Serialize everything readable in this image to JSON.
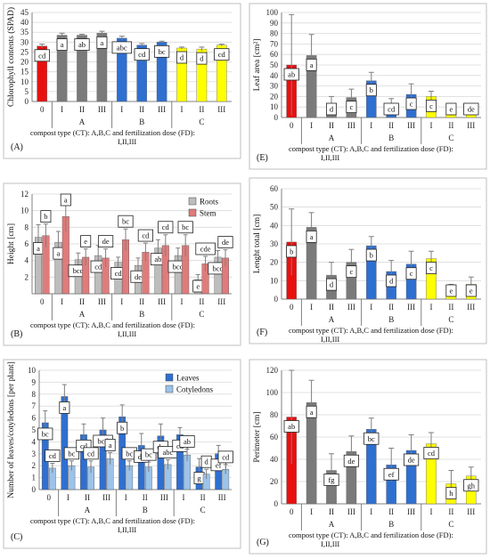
{
  "colors": {
    "red": "#e8100f",
    "grey": "#7a7a7a",
    "blue": "#2f6fd0",
    "yellow": "#ffff00",
    "grey_light": "#bdbdbd",
    "salmon": "#e07b7b",
    "blue_light": "#9cc3ea"
  },
  "x_groups": [
    {
      "code": "0",
      "group": ""
    },
    {
      "code": "I",
      "group": "A"
    },
    {
      "code": "II",
      "group": "A"
    },
    {
      "code": "III",
      "group": "A"
    },
    {
      "code": "I",
      "group": "B"
    },
    {
      "code": "II",
      "group": "B"
    },
    {
      "code": "III",
      "group": "B"
    },
    {
      "code": "I",
      "group": "C"
    },
    {
      "code": "II",
      "group": "C"
    },
    {
      "code": "III",
      "group": "C"
    }
  ],
  "group_letters": [
    "A",
    "B",
    "C"
  ],
  "caption_line1": "compost type (CT): A,B,C  and fertilization dose (FD):",
  "caption_line2": "I,II,III",
  "chart_data": [
    {
      "panel": "(A)",
      "type": "bar",
      "ylabel": "Chlorophyll contents (SPAD)",
      "ylim": [
        0,
        45
      ],
      "yticks": [
        0,
        5,
        10,
        15,
        20,
        25,
        30,
        35,
        40,
        45
      ],
      "categories": [
        "0",
        "I",
        "II",
        "III",
        "I",
        "II",
        "III",
        "I",
        "II",
        "III"
      ],
      "values": [
        28,
        33.5,
        33.5,
        34.5,
        32,
        28.5,
        30,
        27,
        26.5,
        28.5
      ],
      "errors": [
        1,
        1,
        0.5,
        1,
        1,
        0.8,
        0.5,
        0.5,
        1,
        0.5
      ],
      "letters": [
        "cd",
        "a",
        "ab",
        "a",
        "abc",
        "cd",
        "bc",
        "d",
        "d",
        "cd"
      ],
      "colors": [
        "red",
        "grey",
        "grey",
        "grey",
        "blue",
        "blue",
        "blue",
        "yellow",
        "yellow",
        "yellow"
      ]
    },
    {
      "panel": "(E)",
      "type": "bar",
      "ylabel": "Leaf area [cm²]",
      "ylim": [
        0,
        100
      ],
      "yticks": [
        0,
        10,
        20,
        30,
        40,
        50,
        60,
        70,
        80,
        90,
        100
      ],
      "categories": [
        "0",
        "I",
        "II",
        "III",
        "I",
        "II",
        "III",
        "I",
        "II",
        "III"
      ],
      "values": [
        50,
        59,
        12,
        19,
        35,
        13,
        22,
        20,
        6,
        8
      ],
      "errors": [
        48,
        20,
        8,
        8,
        8,
        5,
        10,
        5,
        4,
        4
      ],
      "letters": [
        "ab",
        "a",
        "d",
        "c",
        "b",
        "cd",
        "c",
        "c",
        "e",
        "de"
      ],
      "colors": [
        "red",
        "grey",
        "grey",
        "grey",
        "blue",
        "blue",
        "blue",
        "yellow",
        "yellow",
        "yellow"
      ]
    },
    {
      "panel": "(B)",
      "type": "bar",
      "ylabel": "Height [cm]",
      "ylim": [
        0,
        12
      ],
      "yticks": [
        2,
        4,
        6,
        8,
        10,
        12
      ],
      "categories": [
        "0",
        "I",
        "II",
        "III",
        "I",
        "II",
        "III",
        "I",
        "II",
        "III"
      ],
      "series": [
        {
          "name": "Roots",
          "values": [
            6.8,
            6.2,
            4.1,
            4.6,
            3.8,
            3.4,
            5.5,
            4.6,
            1.7,
            4.4
          ],
          "errors": [
            1.5,
            1.3,
            0.8,
            1.2,
            0.6,
            0.9,
            1.0,
            0.9,
            0.6,
            0.8
          ]
        },
        {
          "name": "Stem",
          "values": [
            7,
            9.3,
            4.4,
            4.3,
            6.5,
            5,
            5.8,
            5.8,
            3.6,
            4.3
          ],
          "errors": [
            1.4,
            1.8,
            1.0,
            1.1,
            1.3,
            1.1,
            1.3,
            1.3,
            0.9,
            1.0
          ]
        }
      ],
      "letters_roots": [
        "a",
        "a",
        "bcd",
        "cd",
        "cd",
        "de",
        "ab",
        "bcd",
        "e",
        "bcd"
      ],
      "letters_stem": [
        "b",
        "a",
        "e",
        "de",
        "bc",
        "cd",
        "cd",
        "bc",
        "cde",
        "de"
      ],
      "legend": [
        "Roots",
        "Stem"
      ]
    },
    {
      "panel": "(F)",
      "type": "bar",
      "ylabel": "Lenght total [cm]",
      "ylim": [
        0,
        60
      ],
      "yticks": [
        0,
        10,
        20,
        30,
        40,
        50,
        60
      ],
      "categories": [
        "0",
        "I",
        "II",
        "III",
        "I",
        "II",
        "III",
        "I",
        "II",
        "III"
      ],
      "values": [
        31,
        39,
        13,
        20,
        29,
        15,
        19,
        22,
        5,
        8
      ],
      "errors": [
        18,
        8,
        7,
        7,
        5,
        6,
        7,
        4,
        3,
        4
      ],
      "letters": [
        "b",
        "a",
        "d",
        "c",
        "b",
        "d",
        "c",
        "c",
        "e",
        "e"
      ],
      "colors": [
        "red",
        "grey",
        "grey",
        "grey",
        "blue",
        "blue",
        "blue",
        "yellow",
        "yellow",
        "yellow"
      ]
    },
    {
      "panel": "(C)",
      "type": "bar",
      "ylabel": "Number of leaves/cotyledons [per plant]",
      "ylim": [
        0,
        10
      ],
      "yticks": [
        0,
        1,
        2,
        3,
        4,
        5,
        6,
        7,
        8,
        9,
        10
      ],
      "categories": [
        "0",
        "I",
        "II",
        "III",
        "I",
        "II",
        "III",
        "I",
        "II",
        "III"
      ],
      "series": [
        {
          "name": "Leaves",
          "values": [
            5.6,
            7.8,
            4.6,
            5,
            6.1,
            3.7,
            4.5,
            4.6,
            1.9,
            3
          ],
          "errors": [
            1,
            1,
            0.9,
            1,
            1.0,
            1,
            1.0,
            0.6,
            0.7,
            0.7
          ]
        },
        {
          "name": "Cotyledons",
          "values": [
            1.8,
            2,
            1.9,
            2.6,
            2,
            1.9,
            2.1,
            2.9,
            1.3,
            1.7
          ],
          "errors": [
            0.4,
            0.4,
            0.5,
            0.5,
            0.4,
            0.4,
            0.4,
            0.5,
            0.4,
            0.4
          ]
        }
      ],
      "letters_leaves": [
        "bc",
        "a",
        "cd",
        "bcd",
        "b",
        "de",
        "de",
        "cd",
        "g",
        "ef"
      ],
      "letters_cotyledons": [
        "cd",
        "bc",
        "cd",
        "a",
        "bc",
        "bc",
        "abc",
        "ab",
        "d",
        "cd"
      ],
      "legend": [
        "Leaves",
        "Cotyledons"
      ]
    },
    {
      "panel": "(G)",
      "type": "bar",
      "ylabel": "Perimeter [cm]",
      "ylim": [
        0,
        120
      ],
      "yticks": [
        0,
        20,
        40,
        60,
        80,
        100,
        120
      ],
      "categories": [
        "0",
        "I",
        "II",
        "III",
        "I",
        "II",
        "III",
        "I",
        "II",
        "III"
      ],
      "values": [
        78,
        91,
        30,
        47,
        67,
        35,
        48,
        54,
        18,
        25
      ],
      "errors": [
        42,
        20,
        15,
        14,
        10,
        15,
        14,
        10,
        12,
        8
      ],
      "letters": [
        "ab",
        "a",
        "fg",
        "de",
        "bc",
        "ef",
        "de",
        "cd",
        "h",
        "gh"
      ],
      "colors": [
        "red",
        "grey",
        "grey",
        "grey",
        "blue",
        "blue",
        "blue",
        "yellow",
        "yellow",
        "yellow"
      ]
    }
  ]
}
